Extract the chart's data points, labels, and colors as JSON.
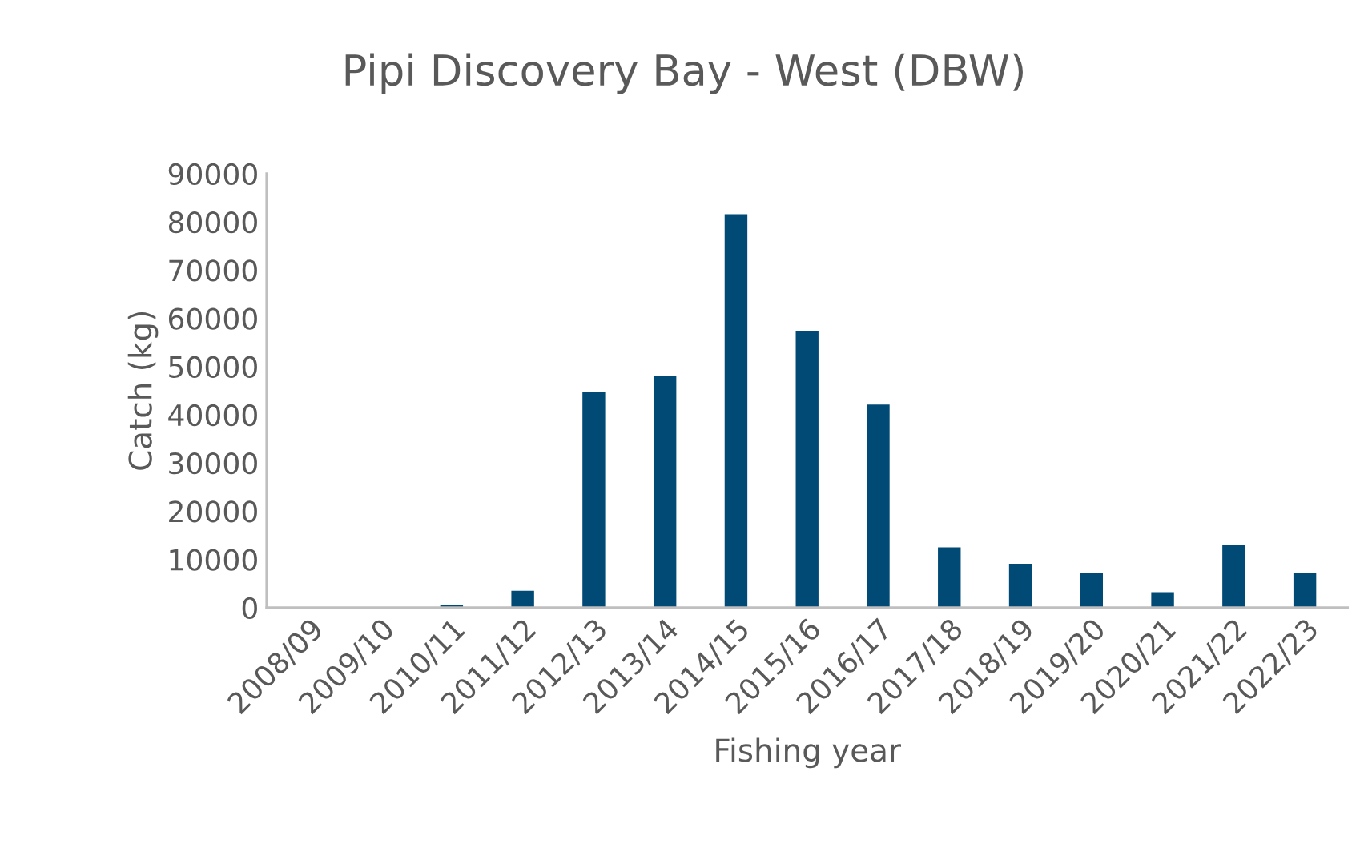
{
  "chart_data": {
    "type": "bar",
    "title": "Pipi Discovery Bay - West (DBW)",
    "xlabel": "Fishing year",
    "ylabel": "Catch (kg)",
    "categories": [
      "2008/09",
      "2009/10",
      "2010/11",
      "2011/12",
      "2012/13",
      "2013/14",
      "2014/15",
      "2015/16",
      "2016/17",
      "2017/18",
      "2018/19",
      "2019/20",
      "2020/21",
      "2021/22",
      "2022/23"
    ],
    "values": [
      0,
      0,
      550,
      3500,
      44700,
      48000,
      81600,
      57400,
      42100,
      12500,
      9100,
      7100,
      3200,
      13100,
      7200
    ],
    "color": "#004a75",
    "ylim": [
      0,
      90000
    ],
    "yticks": [
      0,
      10000,
      20000,
      30000,
      40000,
      50000,
      60000,
      70000,
      80000,
      90000
    ],
    "grid": false
  }
}
